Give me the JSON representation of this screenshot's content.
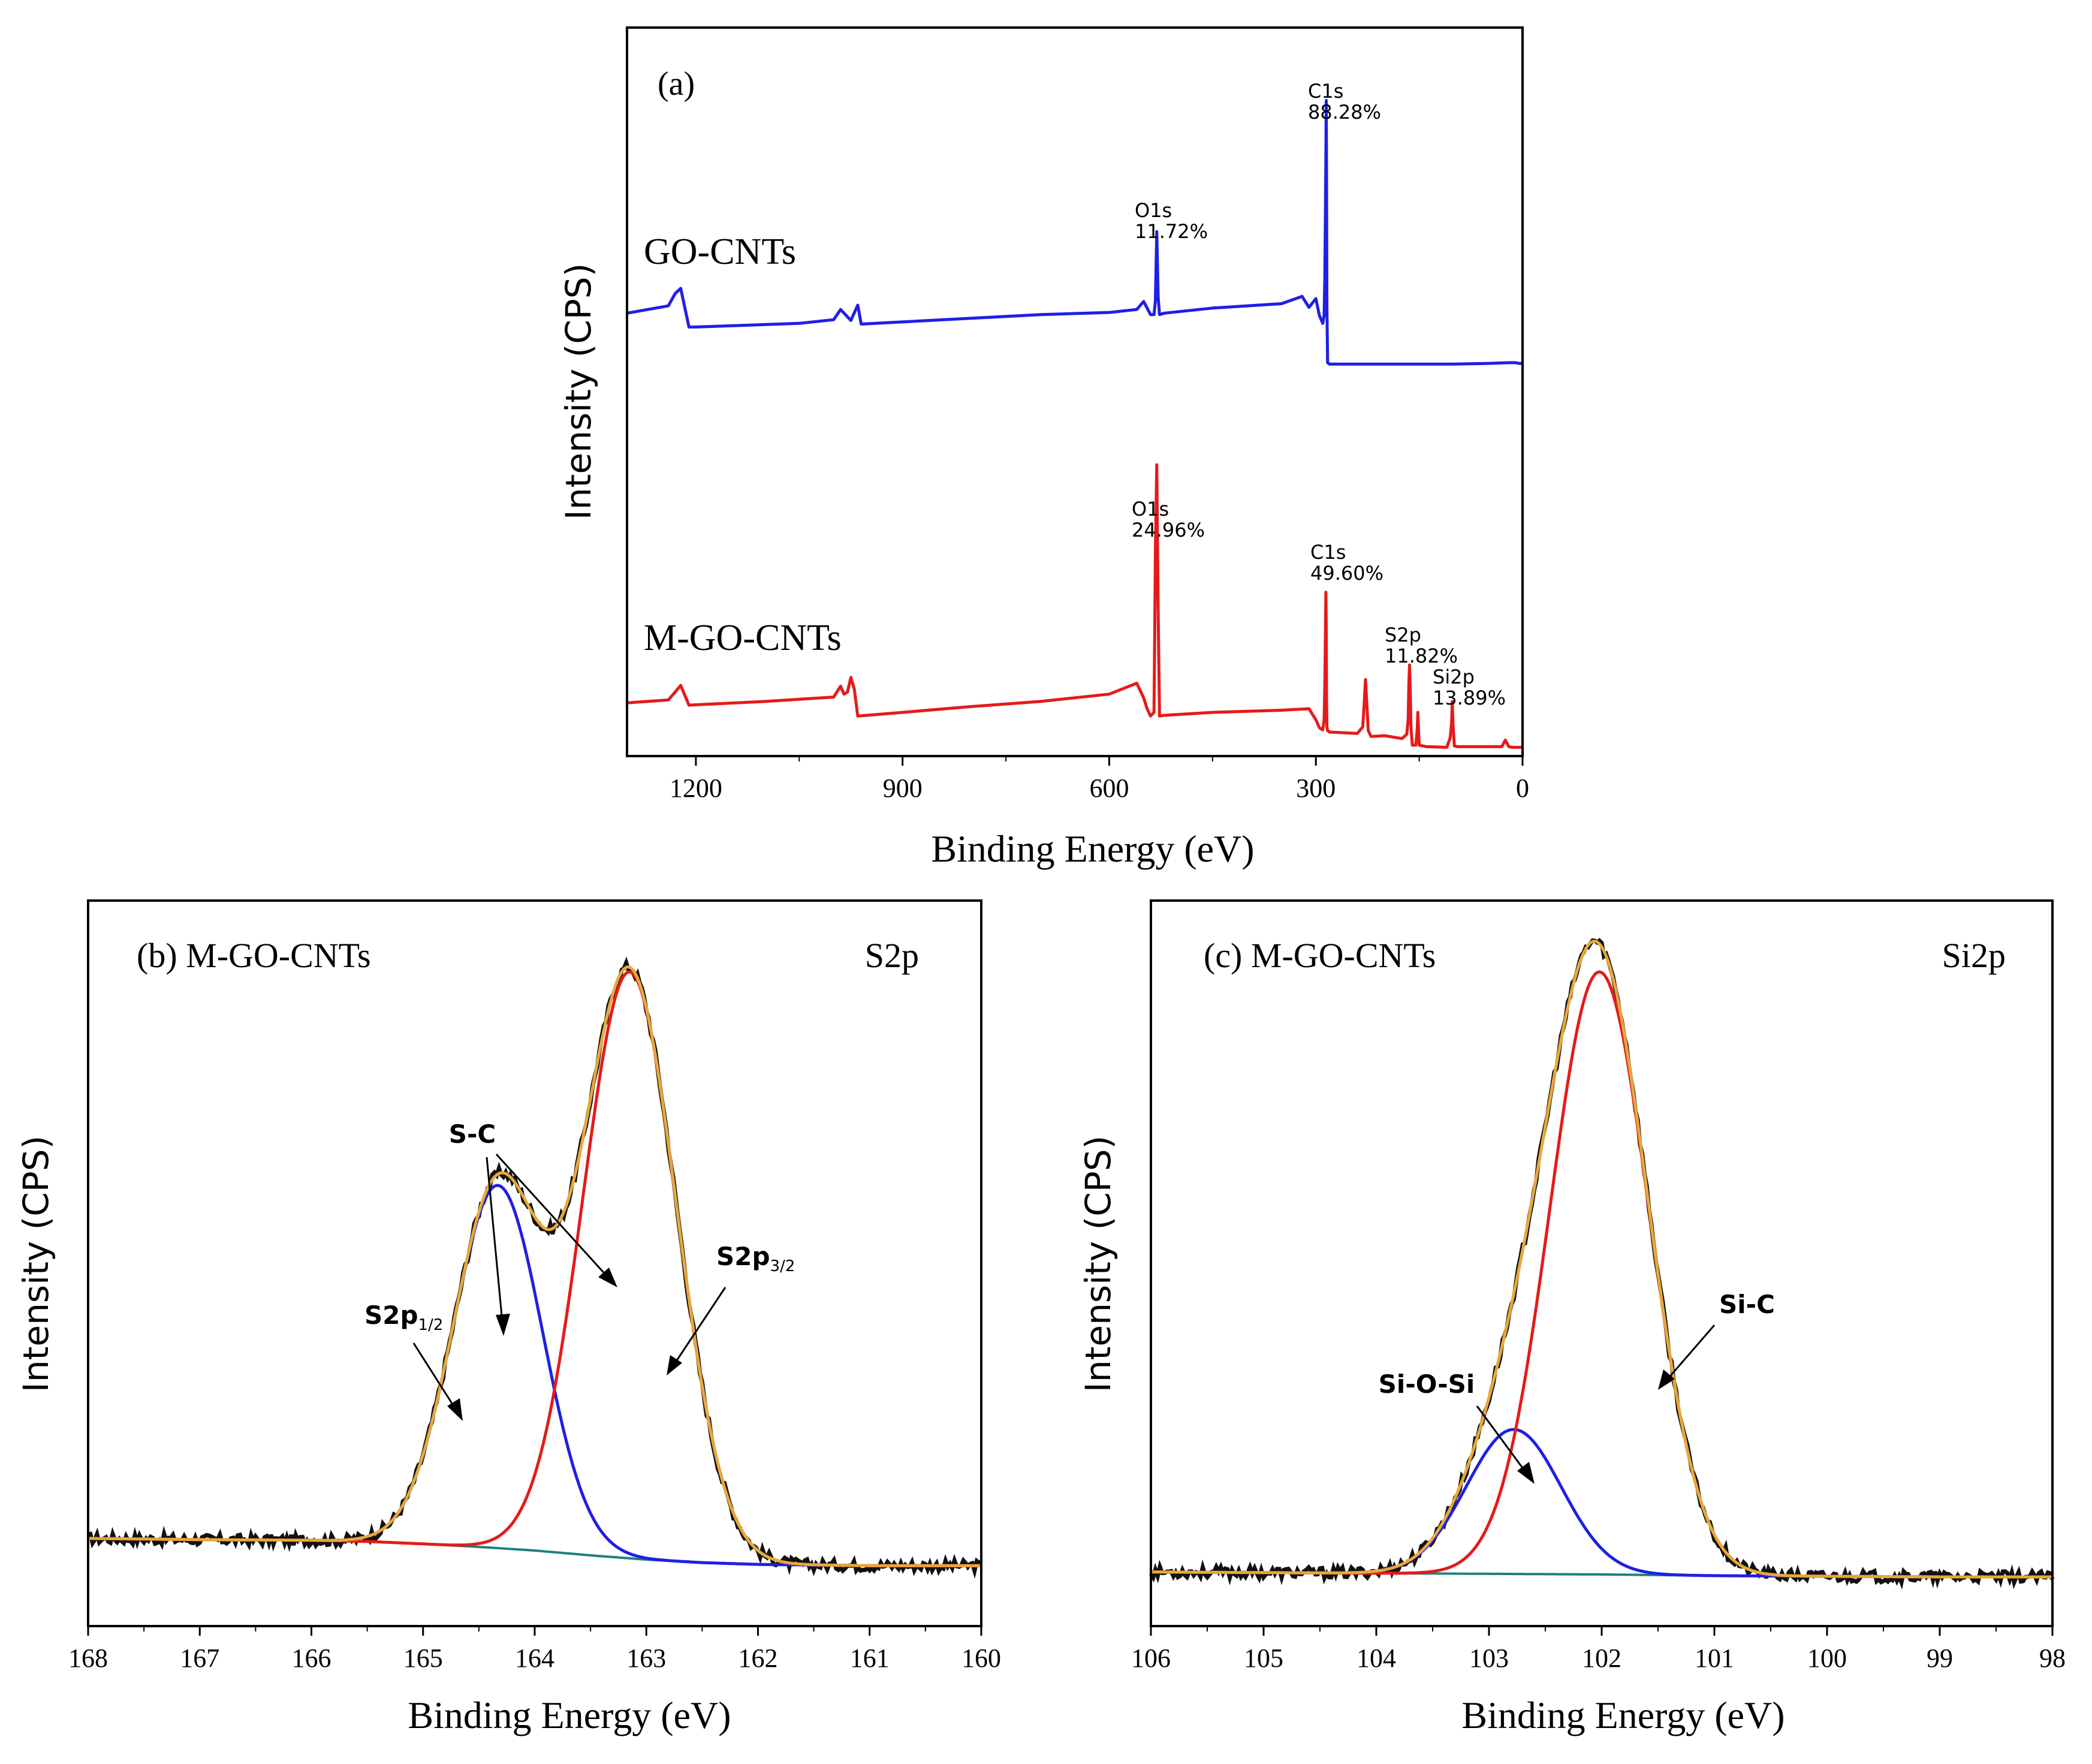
{
  "chart_data": [
    {
      "id": "a",
      "type": "line",
      "panel_label": "(a)",
      "xlabel": "Binding Energy (eV)",
      "ylabel": "Intensity (CPS)",
      "xlim": [
        1300,
        0
      ],
      "ylim": [
        0,
        100
      ],
      "xticks": [
        1200,
        900,
        600,
        300,
        0
      ],
      "xtick_labels": [
        "1200",
        "900",
        "600",
        "300",
        "0"
      ],
      "series": [
        {
          "name": "GO-CNTs",
          "color": "#1f1fe6",
          "x": [
            1300,
            1240,
            1230,
            1222,
            1210,
            1200,
            1050,
            1000,
            990,
            975,
            965,
            960,
            900,
            800,
            700,
            600,
            560,
            550,
            545,
            540,
            535,
            533,
            531,
            529,
            527,
            520,
            450,
            350,
            320,
            310,
            300,
            295,
            290,
            288,
            287,
            286,
            285.5,
            285,
            284.5,
            284,
            283,
            280,
            270,
            200,
            100,
            50,
            20,
            10,
            5,
            0
          ],
          "values": [
            60.8,
            61.8,
            63.5,
            64.2,
            58.9,
            58.9,
            59.4,
            59.9,
            61.3,
            59.8,
            61.9,
            59.3,
            59.6,
            60.1,
            60.6,
            60.9,
            61.3,
            62.4,
            61.5,
            60.6,
            60.6,
            62.5,
            72.0,
            63.0,
            60.6,
            60.8,
            61.5,
            62.1,
            63.1,
            61.6,
            62.8,
            60.5,
            59.4,
            60.5,
            66.0,
            76.0,
            82.0,
            90.0,
            80.0,
            62.0,
            54.0,
            53.8,
            53.8,
            53.8,
            53.8,
            53.9,
            54.0,
            54.0,
            53.9,
            53.9
          ]
        },
        {
          "name": "M-GO-CNTs",
          "color": "#e61a1a",
          "x": [
            1300,
            1240,
            1230,
            1222,
            1210,
            1100,
            1000,
            990,
            985,
            980,
            975,
            970,
            965,
            900,
            800,
            700,
            600,
            560,
            550,
            545,
            540,
            535,
            533,
            531,
            529,
            527,
            520,
            450,
            350,
            310,
            300,
            295,
            290,
            288,
            287,
            286,
            285.5,
            285,
            284.5,
            284,
            283,
            280,
            240,
            232,
            230,
            228,
            226,
            224,
            220,
            200,
            175,
            168,
            166,
            165,
            164,
            163,
            162,
            160,
            155,
            153,
            152,
            151,
            150,
            140,
            110,
            105,
            103,
            102,
            101,
            99,
            95,
            80,
            50,
            30,
            25,
            20,
            15,
            0
          ],
          "values": [
            7.3,
            7.7,
            8.8,
            9.7,
            7.0,
            7.5,
            8.1,
            9.6,
            8.5,
            8.8,
            10.8,
            9.2,
            5.5,
            6.0,
            6.8,
            7.5,
            8.5,
            10.0,
            8.0,
            6.5,
            5.5,
            6.0,
            28.0,
            40.0,
            20.0,
            5.5,
            5.6,
            6.0,
            6.3,
            6.5,
            5.0,
            3.9,
            3.6,
            5.0,
            10.0,
            18.0,
            22.5,
            18.0,
            8.0,
            4.0,
            3.5,
            3.3,
            3.1,
            4.0,
            7.0,
            10.5,
            7.0,
            3.5,
            2.7,
            2.8,
            2.4,
            3.0,
            5.0,
            10.0,
            12.5,
            9.0,
            4.0,
            1.5,
            1.5,
            3.5,
            6.0,
            3.5,
            1.5,
            1.3,
            1.2,
            2.5,
            4.5,
            7.5,
            4.5,
            1.4,
            1.3,
            1.3,
            1.3,
            1.3,
            2.2,
            1.3,
            1.2,
            1.2
          ]
        }
      ],
      "curve_labels": [
        "GO-CNTs",
        "M-GO-CNTs"
      ],
      "annotations": [
        {
          "name": "go-o1s-label",
          "lines": [
            "O1s",
            "11.72%"
          ],
          "x": 531,
          "y": 73
        },
        {
          "name": "go-c1s-label",
          "lines": [
            "C1s",
            "88.28%"
          ],
          "x": 285,
          "y": 91
        },
        {
          "name": "mgo-o1s-label",
          "lines": [
            "O1s",
            "24.96%"
          ],
          "x": 531,
          "y": 41
        },
        {
          "name": "mgo-c1s-label",
          "lines": [
            "C1s",
            "49.60%"
          ],
          "x": 285,
          "y": 24
        },
        {
          "name": "mgo-s2p-label",
          "lines": [
            "S2p",
            "11.82%"
          ],
          "x": 164,
          "y": 14
        },
        {
          "name": "mgo-si2p-label",
          "lines": [
            "Si2p",
            "13.89%"
          ],
          "x": 102,
          "y": 8.5
        }
      ]
    },
    {
      "id": "b",
      "type": "line",
      "panel_label": "(b) M-GO-CNTs",
      "corner_label": "S2p",
      "xlabel": "Binding Energy (eV)",
      "ylabel": "Intensity (CPS)",
      "xlim": [
        168,
        160
      ],
      "ylim": [
        -0.1,
        1.1
      ],
      "xticks": [
        168,
        167,
        166,
        165,
        164,
        163,
        162,
        161,
        160
      ],
      "xtick_labels": [
        "168",
        "167",
        "166",
        "165",
        "164",
        "163",
        "162",
        "161",
        "160"
      ],
      "background": {
        "color": "#1f8080",
        "x": [
          168,
          167,
          166,
          165.5,
          165,
          164.5,
          164,
          163.5,
          163,
          162.5,
          162,
          161.5,
          161,
          160
        ],
        "values": [
          0.045,
          0.043,
          0.042,
          0.04,
          0.036,
          0.031,
          0.025,
          0.017,
          0.01,
          0.005,
          0.002,
          0.001,
          0.0,
          0.0
        ]
      },
      "components": [
        {
          "name": "S2p1/2 (S-C)",
          "color": "#1f1fe6",
          "center": 164.33,
          "height": 0.6,
          "sigma": 0.4
        },
        {
          "name": "S2p3/2 (S-C)",
          "color": "#e61a1a",
          "center": 163.15,
          "height": 0.97,
          "sigma": 0.42
        }
      ],
      "envelope_color": "#e8a838",
      "raw_color": "#111111",
      "peak_labels": [
        {
          "name": "s-c-label",
          "text": "S-C"
        },
        {
          "name": "s2p12-label",
          "main": "S2p",
          "sub": "1/2"
        },
        {
          "name": "s2p32-label",
          "main": "S2p",
          "sub": "3/2"
        }
      ]
    },
    {
      "id": "c",
      "type": "line",
      "panel_label": "(c) M-GO-CNTs",
      "corner_label": "Si2p",
      "xlabel": "Binding Energy (eV)",
      "ylabel": "Intensity (CPS)",
      "xlim": [
        106,
        98
      ],
      "ylim": [
        -0.08,
        1.1
      ],
      "xticks": [
        106,
        105,
        104,
        103,
        102,
        101,
        100,
        99,
        98
      ],
      "xtick_labels": [
        "106",
        "105",
        "104",
        "103",
        "102",
        "101",
        "100",
        "99",
        "98"
      ],
      "background": {
        "color": "#1f8080",
        "x": [
          106,
          104,
          103,
          102,
          101,
          100,
          99,
          98
        ],
        "values": [
          0.008,
          0.006,
          0.005,
          0.004,
          0.002,
          0.001,
          0.0,
          0.0
        ]
      },
      "components": [
        {
          "name": "Si-O-Si",
          "color": "#1f1fe6",
          "center": 102.78,
          "height": 0.235,
          "sigma": 0.42
        },
        {
          "name": "Si-C",
          "color": "#e61a1a",
          "center": 102.02,
          "height": 0.98,
          "sigma": 0.44
        }
      ],
      "envelope_color": "#e8a838",
      "raw_color": "#111111",
      "peak_labels": [
        {
          "name": "si-o-si-label",
          "text": "Si-O-Si"
        },
        {
          "name": "si-c-label",
          "text": "Si-C"
        }
      ]
    }
  ]
}
